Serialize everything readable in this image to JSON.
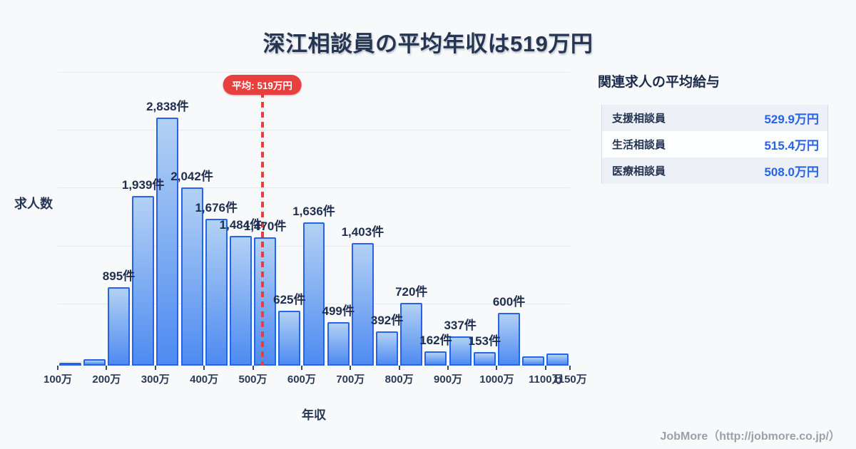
{
  "title": "深江相談員の平均年収は519万円",
  "chart_data": {
    "type": "bar",
    "title": "深江相談員の平均年収は519万円",
    "xlabel": "年収",
    "ylabel": "求人数",
    "unit": "件",
    "bin_width_man_yen": 50,
    "x_range_man_yen": [
      100,
      1150
    ],
    "grid": true,
    "legend": false,
    "average_line": {
      "badge_label": "平均: 519万円",
      "value_man_yen": 519
    },
    "bars": [
      {
        "range_man_yen": [
          100,
          150
        ],
        "value": 15,
        "label": ""
      },
      {
        "range_man_yen": [
          150,
          200
        ],
        "value": 70,
        "label": ""
      },
      {
        "range_man_yen": [
          200,
          250
        ],
        "value": 895,
        "label": "895件"
      },
      {
        "range_man_yen": [
          250,
          300
        ],
        "value": 1939,
        "label": "1,939件"
      },
      {
        "range_man_yen": [
          300,
          350
        ],
        "value": 2838,
        "label": "2,838件"
      },
      {
        "range_man_yen": [
          350,
          400
        ],
        "value": 2042,
        "label": "2,042件"
      },
      {
        "range_man_yen": [
          400,
          450
        ],
        "value": 1676,
        "label": "1,676件"
      },
      {
        "range_man_yen": [
          450,
          500
        ],
        "value": 1484,
        "label": "1,484件"
      },
      {
        "range_man_yen": [
          500,
          550
        ],
        "value": 1470,
        "label": "1,470件"
      },
      {
        "range_man_yen": [
          550,
          600
        ],
        "value": 625,
        "label": "625件"
      },
      {
        "range_man_yen": [
          600,
          650
        ],
        "value": 1636,
        "label": "1,636件"
      },
      {
        "range_man_yen": [
          650,
          700
        ],
        "value": 499,
        "label": "499件"
      },
      {
        "range_man_yen": [
          700,
          750
        ],
        "value": 1403,
        "label": "1,403件"
      },
      {
        "range_man_yen": [
          750,
          800
        ],
        "value": 392,
        "label": "392件"
      },
      {
        "range_man_yen": [
          800,
          850
        ],
        "value": 720,
        "label": "720件"
      },
      {
        "range_man_yen": [
          850,
          900
        ],
        "value": 162,
        "label": "162件"
      },
      {
        "range_man_yen": [
          900,
          950
        ],
        "value": 337,
        "label": "337件"
      },
      {
        "range_man_yen": [
          950,
          1000
        ],
        "value": 153,
        "label": "153件"
      },
      {
        "range_man_yen": [
          1000,
          1050
        ],
        "value": 600,
        "label": "600件"
      },
      {
        "range_man_yen": [
          1050,
          1100
        ],
        "value": 110,
        "label": ""
      },
      {
        "range_man_yen": [
          1100,
          1150
        ],
        "value": 140,
        "label": ""
      }
    ],
    "x_ticks": [
      {
        "label": "100万",
        "man_yen": 100
      },
      {
        "label": "200万",
        "man_yen": 200
      },
      {
        "label": "300万",
        "man_yen": 300
      },
      {
        "label": "400万",
        "man_yen": 400
      },
      {
        "label": "500万",
        "man_yen": 500
      },
      {
        "label": "600万",
        "man_yen": 600
      },
      {
        "label": "700万",
        "man_yen": 700
      },
      {
        "label": "800万",
        "man_yen": 800
      },
      {
        "label": "900万",
        "man_yen": 900
      },
      {
        "label": "1000万",
        "man_yen": 1000
      },
      {
        "label": "1100万",
        "man_yen": 1100
      },
      {
        "label": "1150万",
        "man_yen": 1150
      }
    ]
  },
  "side_panel": {
    "heading": "関連求人の平均給与",
    "table": {
      "rows": [
        {
          "name": "支援相談員",
          "value": "529.9万円"
        },
        {
          "name": "生活相談員",
          "value": "515.4万円"
        },
        {
          "name": "医療相談員",
          "value": "508.0万円"
        }
      ]
    }
  },
  "footer": {
    "credit": "JobMore（http://jobmore.co.jp/）"
  },
  "colors": {
    "background": "#f7f9fb",
    "title_text": "#263551",
    "bar_fill_top": "#b3d1f4",
    "bar_fill_bottom": "#4e8bf1",
    "bar_border": "#2563eb",
    "average_accent": "#e83e3e",
    "value_text": "#2563eb",
    "gridline": "#e4e8ef",
    "footer_text": "#9aa1ab"
  }
}
